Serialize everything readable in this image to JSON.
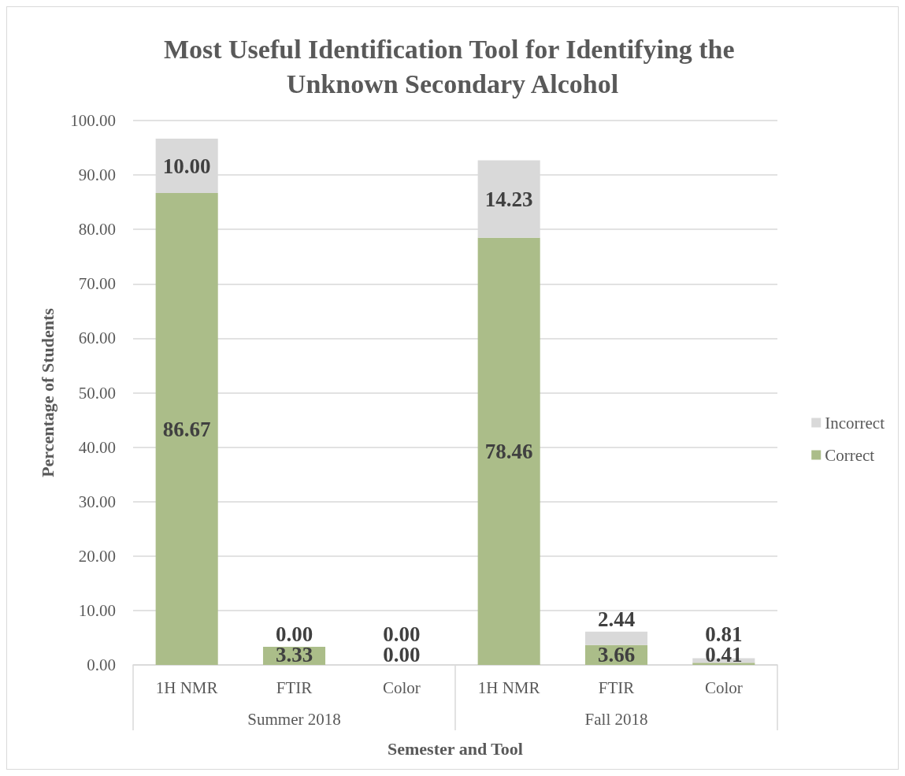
{
  "chart_data": {
    "type": "bar",
    "title": "Most Useful Identification Tool for Identifying the Unknown Secondary Alcohol",
    "xlabel": "Semester and Tool",
    "ylabel": "Percentage of Students",
    "categories": [
      "1H NMR",
      "FTIR",
      "Color",
      "1H NMR",
      "FTIR",
      "Color"
    ],
    "annotations": [
      "Summer 2018",
      "Fall 2018"
    ],
    "stacked": true,
    "series": [
      {
        "name": "Correct",
        "color": "#abbd89",
        "values": [
          86.67,
          3.33,
          0,
          78.46,
          3.66,
          0.41
        ],
        "value_labels": [
          "86.67",
          "3.33",
          "0.00",
          "78.46",
          "3.66",
          "0.41"
        ]
      },
      {
        "name": "Incorrect",
        "color": "#d9d9d9",
        "values": [
          10,
          0,
          0,
          14.23,
          2.44,
          0.81
        ],
        "value_labels": [
          "10.00",
          "0.00",
          "0.00",
          "14.23",
          "2.44",
          "0.81"
        ]
      }
    ],
    "ylim": [
      0,
      100
    ],
    "yticks": [
      {
        "value": 0,
        "label": "0.00"
      },
      {
        "value": 10,
        "label": "10.00"
      },
      {
        "value": 20,
        "label": "20.00"
      },
      {
        "value": 30,
        "label": "30.00"
      },
      {
        "value": 40,
        "label": "40.00"
      },
      {
        "value": 50,
        "label": "50.00"
      },
      {
        "value": 60,
        "label": "60.00"
      },
      {
        "value": 70,
        "label": "70.00"
      },
      {
        "value": 80,
        "label": "80.00"
      },
      {
        "value": 90,
        "label": "90.00"
      },
      {
        "value": 100,
        "label": "100.00"
      }
    ],
    "grid": "y",
    "legend": "right"
  }
}
